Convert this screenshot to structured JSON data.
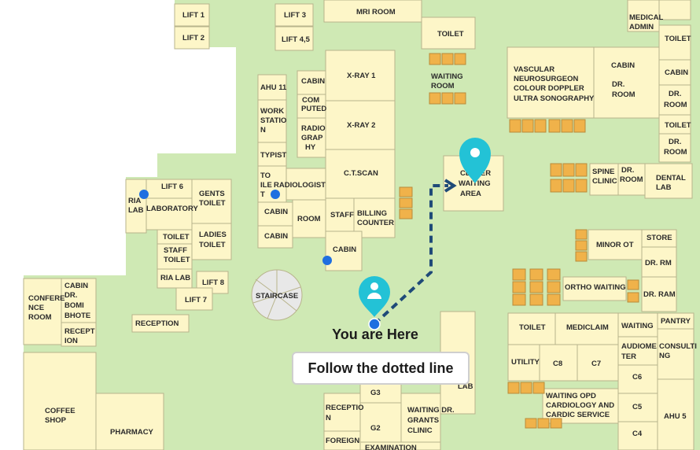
{
  "map": {
    "you_are_here": "You are Here",
    "instruction": "Follow the dotted line",
    "colors": {
      "floor": "#cfe9b4",
      "room": "#fdf6c8",
      "marker": "#23c2d6",
      "route": "#1f4a78",
      "dot": "#1f6fe0",
      "seats": "#f0b24a"
    },
    "icons": [
      "user-location-marker-icon",
      "destination-marker-icon"
    ]
  },
  "rooms": {
    "lift1": "LIFT 1",
    "lift2": "LIFT 2",
    "lift3": "LIFT 3",
    "lift45": "LIFT 4,5",
    "mri": "MRI ROOM",
    "toilet_top": "TOILET",
    "waiting_room_1": "WAITING",
    "waiting_room_2": "ROOM",
    "medical_admin_1": "MEDICAL",
    "medical_admin_2": "ADMIN",
    "toilet_r1": "TOILET",
    "cabin_r1": "CABIN",
    "drroom_r1_1": "DR.",
    "drroom_r1_2": "ROOM",
    "toilet_r2": "TOILET",
    "drroom_r2_1": "DR.",
    "drroom_r2_2": "ROOM",
    "vascular_1": "VASCULAR",
    "vascular_2": "NEUROSURGEON",
    "vascular_3": "COLOUR DOPPLER",
    "vascular_4": "ULTRA SONOGRAPHY",
    "cabin_v": "CABIN",
    "drroom_v_1": "DR.",
    "drroom_v_2": "ROOM",
    "ahu11": "AHU 11",
    "workstation_1": "WORK",
    "workstation_2": "STATIO",
    "workstation_3": "N",
    "typist": "TYPIST",
    "toilet_v_1": "TO",
    "toilet_v_2": "ILE",
    "toilet_v_3": "T",
    "cabin_c1": "CABIN",
    "computed_1": "COM",
    "computed_2": "PUTED",
    "radiography_1": "RADIO",
    "radiography_2": "GRAP",
    "radiography_3": "HY",
    "radiologist": "RADIOLOGIST",
    "xray1": "X-RAY 1",
    "xray2": "X-RAY 2",
    "ctscan": "C.T.SCAN",
    "cabin_c2": "CABIN",
    "room_c": "ROOM",
    "cabin_c3": "CABIN",
    "staff": "STAFF",
    "billing_1": "BILLING",
    "billing_2": "COUNTER",
    "cabin_c4": "CABIN",
    "staircase": "STAIRCASE",
    "center_waiting_1": "CENTER",
    "center_waiting_2": "WAITING",
    "center_waiting_3": "AREA",
    "ria_lab_1": "RIA",
    "ria_lab_2": "LAB",
    "lift6": "LIFT 6",
    "laboratory": "LABORATORY",
    "gents_1": "GENTS",
    "gents_2": "TOILET",
    "toilet_l": "TOILET",
    "ladies_1": "LADIES",
    "ladies_2": "TOILET",
    "staff_toilet_1": "STAFF",
    "staff_toilet_2": "TOILET",
    "ria_lab_b": "RIA LAB",
    "lift8": "LIFT 8",
    "lift7": "LIFT 7",
    "reception_l": "RECEPTION",
    "conference_1": "CONFERE",
    "conference_2": "NCE",
    "conference_3": "ROOM",
    "cabin_bomi_1": "CABIN",
    "cabin_bomi_2": "DR.",
    "cabin_bomi_3": "BOMI",
    "cabin_bomi_4": "BHOTE",
    "reception_b_1": "RECEPT",
    "reception_b_2": "ION",
    "coffee_1": "COFFEE",
    "coffee_2": "SHOP",
    "pharmacy": "PHARMACY",
    "spine_1": "SPINE",
    "spine_2": "CLINIC",
    "drroom_s_1": "DR.",
    "drroom_s_2": "ROOM",
    "dental_1": "DENTAL",
    "dental_2": "LAB",
    "minor_ot": "MINOR OT",
    "store": "STORE",
    "dr_rm": "DR. RM",
    "ortho_waiting": "ORTHO WAITING",
    "dr_ram": "DR. RAM",
    "toilet_b": "TOILET",
    "mediclaim": "MEDICLAIM",
    "waiting_b": "WAITING",
    "pantry": "PANTRY",
    "audiometer_1": "AUDIOME",
    "audiometer_2": "TER",
    "consulting_1": "CONSULTI",
    "consulting_2": "NG",
    "utility": "UTILITY",
    "c8": "C8",
    "c7": "C7",
    "c6": "C6",
    "c5": "C5",
    "c4": "C4",
    "ahu5": "AHU 5",
    "waiting_opd_1": "WAITING OPD",
    "waiting_opd_2": "CARDIOLOGY AND",
    "waiting_opd_3": "CARDIC SERVICE",
    "lab_c": "LAB",
    "g3": "G3",
    "g2": "G2",
    "reception_c_1": "RECEPTIO",
    "reception_c_2": "N",
    "foreign": "FOREIGN",
    "waiting_grants_1": "WAITING DR.",
    "waiting_grants_2": "GRANTS",
    "waiting_grants_3": "CLINIC",
    "examination": "EXAMINATION"
  }
}
